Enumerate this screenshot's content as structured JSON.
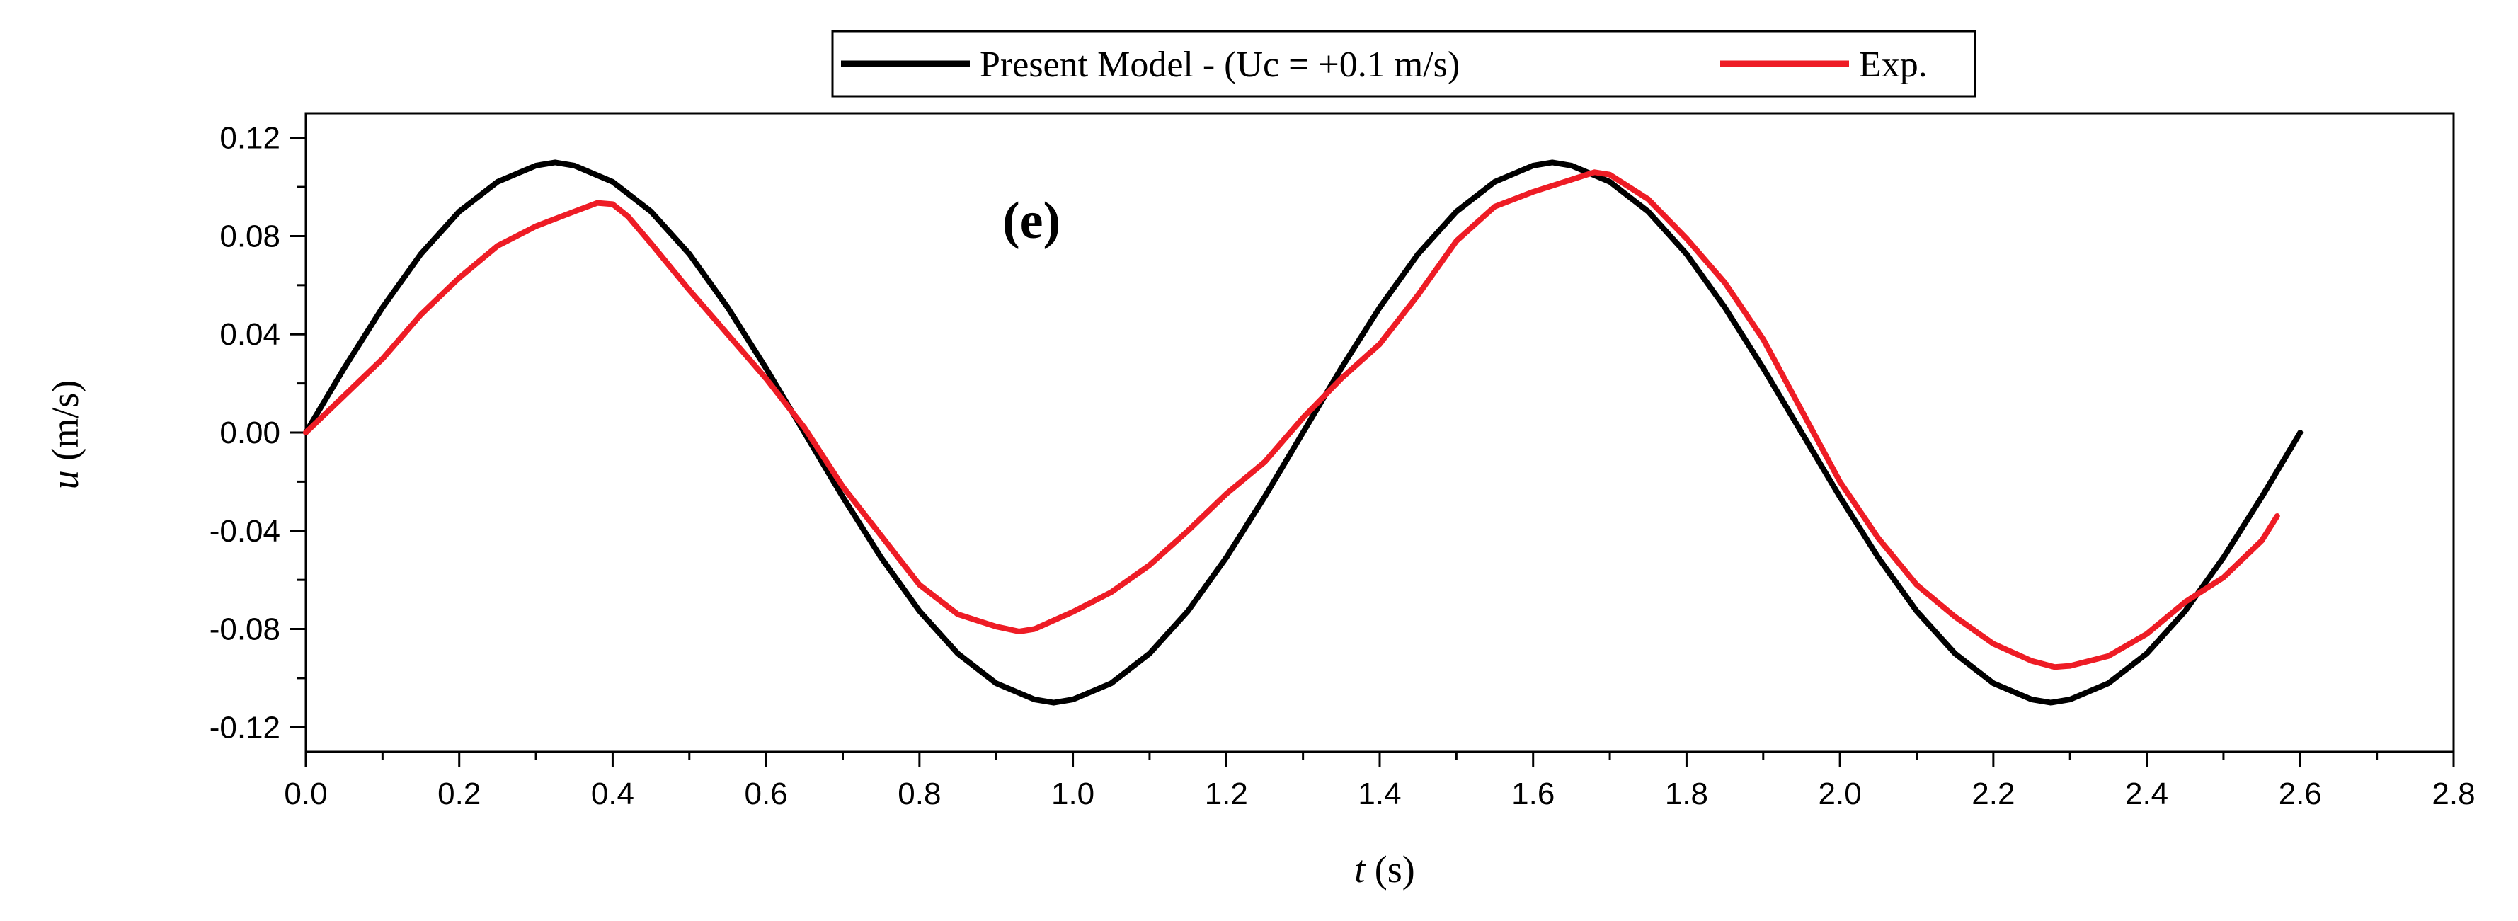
{
  "chart_data": {
    "type": "line",
    "title": "",
    "panel_label": "(e)",
    "xlabel_var": "t",
    "xlabel_unit": " (s)",
    "ylabel_var": "u",
    "ylabel_unit": " (m/s)",
    "xlim": [
      0.0,
      2.8
    ],
    "ylim": [
      -0.13,
      0.13
    ],
    "xticks": [
      0.0,
      0.2,
      0.4,
      0.6,
      0.8,
      1.0,
      1.2,
      1.4,
      1.6,
      1.8,
      2.0,
      2.2,
      2.4,
      2.6,
      2.8
    ],
    "xtick_labels": [
      "0.0",
      "0.2",
      "0.4",
      "0.6",
      "0.8",
      "1.0",
      "1.2",
      "1.4",
      "1.6",
      "1.8",
      "2.0",
      "2.2",
      "2.4",
      "2.6",
      "2.8"
    ],
    "yticks": [
      0.12,
      0.08,
      0.04,
      0.0,
      -0.04,
      -0.08,
      -0.12
    ],
    "ytick_labels": [
      "0.12",
      "0.08",
      "0.04",
      "0.00",
      "-0.04",
      "-0.08",
      "-0.12"
    ],
    "grid": false,
    "legend_position": "top-center",
    "series": [
      {
        "name": "Present Model - (Uc = +0.1 m/s)",
        "color": "#000000",
        "x": [
          0.0,
          0.05,
          0.1,
          0.15,
          0.2,
          0.25,
          0.3,
          0.325,
          0.35,
          0.4,
          0.45,
          0.5,
          0.55,
          0.6,
          0.65,
          0.7,
          0.75,
          0.8,
          0.85,
          0.9,
          0.95,
          0.975,
          1.0,
          1.05,
          1.1,
          1.15,
          1.2,
          1.25,
          1.3,
          1.35,
          1.4,
          1.45,
          1.5,
          1.55,
          1.6,
          1.625,
          1.65,
          1.7,
          1.75,
          1.8,
          1.85,
          1.9,
          1.95,
          2.0,
          2.05,
          2.1,
          2.15,
          2.2,
          2.25,
          2.275,
          2.3,
          2.35,
          2.4,
          2.45,
          2.5,
          2.55,
          2.6
        ],
        "y": [
          0.0,
          0.0262,
          0.0509,
          0.0727,
          0.09,
          0.1021,
          0.1087,
          0.11,
          0.1087,
          0.1021,
          0.09,
          0.0727,
          0.0509,
          0.0262,
          0.0,
          -0.0262,
          -0.0509,
          -0.0727,
          -0.09,
          -0.1021,
          -0.1087,
          -0.11,
          -0.1087,
          -0.1021,
          -0.09,
          -0.0727,
          -0.0509,
          -0.0262,
          0.0,
          0.0262,
          0.0509,
          0.0727,
          0.09,
          0.1021,
          0.1087,
          0.11,
          0.1087,
          0.1021,
          0.09,
          0.0727,
          0.0509,
          0.0262,
          0.0,
          -0.0262,
          -0.0509,
          -0.0727,
          -0.09,
          -0.1021,
          -0.1087,
          -0.11,
          -0.1087,
          -0.1021,
          -0.09,
          -0.0727,
          -0.0509,
          -0.0262,
          0.0
        ]
      },
      {
        "name": "Exp.",
        "color": "#ee1c25",
        "x": [
          0.0,
          0.05,
          0.1,
          0.15,
          0.2,
          0.25,
          0.3,
          0.35,
          0.38,
          0.4,
          0.42,
          0.45,
          0.5,
          0.55,
          0.6,
          0.65,
          0.7,
          0.75,
          0.8,
          0.85,
          0.9,
          0.93,
          0.95,
          1.0,
          1.05,
          1.1,
          1.15,
          1.2,
          1.25,
          1.3,
          1.35,
          1.4,
          1.45,
          1.5,
          1.55,
          1.6,
          1.65,
          1.68,
          1.7,
          1.75,
          1.8,
          1.85,
          1.9,
          1.95,
          2.0,
          2.05,
          2.1,
          2.15,
          2.2,
          2.25,
          2.28,
          2.3,
          2.35,
          2.4,
          2.45,
          2.5,
          2.55,
          2.57
        ],
        "y": [
          0.0,
          0.015,
          0.03,
          0.048,
          0.063,
          0.076,
          0.084,
          0.09,
          0.0935,
          0.093,
          0.088,
          0.077,
          0.058,
          0.04,
          0.022,
          0.002,
          -0.022,
          -0.042,
          -0.062,
          -0.074,
          -0.079,
          -0.081,
          -0.08,
          -0.073,
          -0.065,
          -0.054,
          -0.04,
          -0.025,
          -0.012,
          0.006,
          0.022,
          0.036,
          0.056,
          0.078,
          0.092,
          0.098,
          0.103,
          0.106,
          0.105,
          0.095,
          0.079,
          0.061,
          0.038,
          0.009,
          -0.02,
          -0.043,
          -0.062,
          -0.075,
          -0.086,
          -0.093,
          -0.0955,
          -0.095,
          -0.091,
          -0.082,
          -0.069,
          -0.059,
          -0.044,
          -0.034
        ]
      }
    ]
  }
}
